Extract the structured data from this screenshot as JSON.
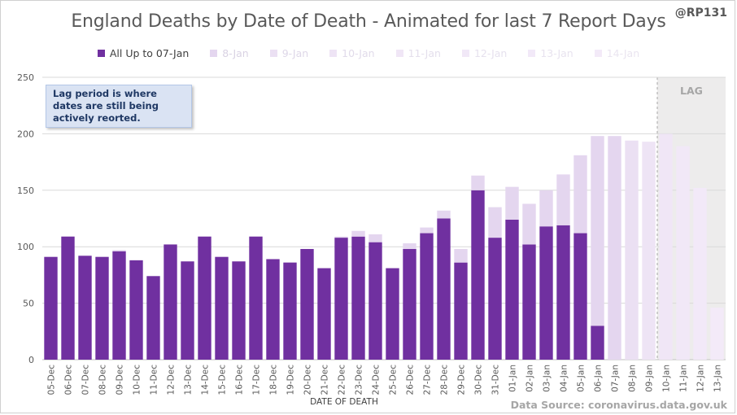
{
  "title": "England Deaths by Date of Death - Animated for last 7 Report Days",
  "handle": "@RP131",
  "note": "Lag period is where dates are still being actively reorted.",
  "source": "Data Source: coronavirus.data.gov.uk",
  "lag_label": "LAG",
  "colors": {
    "base": "#7030a0",
    "grid": "#d9d9d9",
    "text": "#595959",
    "lag_shade": "#e7e6e6"
  },
  "chart_data": {
    "type": "bar",
    "stacked": true,
    "xlabel": "DATE OF DEATH",
    "ylabel": "",
    "ylim": [
      0,
      250
    ],
    "yticks": [
      0,
      50,
      100,
      150,
      200,
      250
    ],
    "grid": true,
    "legend_position": "top",
    "lag_region": [
      "10-Jan",
      "13-Jan"
    ],
    "categories": [
      "05-Dec",
      "06-Dec",
      "07-Dec",
      "08-Dec",
      "09-Dec",
      "10-Dec",
      "11-Dec",
      "12-Dec",
      "13-Dec",
      "14-Dec",
      "15-Dec",
      "16-Dec",
      "17-Dec",
      "18-Dec",
      "19-Dec",
      "20-Dec",
      "21-Dec",
      "22-Dec",
      "23-Dec",
      "24-Dec",
      "25-Dec",
      "26-Dec",
      "27-Dec",
      "28-Dec",
      "29-Dec",
      "30-Dec",
      "31-Dec",
      "01-Jan",
      "02-Jan",
      "03-Jan",
      "04-Jan",
      "05-Jan",
      "06-Jan",
      "07-Jan",
      "08-Jan",
      "09-Jan",
      "10-Jan",
      "11-Jan",
      "12-Jan",
      "13-Jan"
    ],
    "series": [
      {
        "name": "All Up to 07-Jan",
        "color": "#7030a0",
        "text_color": "#404040",
        "values": [
          91,
          109,
          92,
          91,
          96,
          88,
          74,
          102,
          87,
          109,
          91,
          87,
          109,
          89,
          86,
          98,
          81,
          108,
          109,
          104,
          81,
          98,
          112,
          125,
          86,
          150,
          108,
          124,
          102,
          118,
          119,
          112,
          30,
          0,
          0,
          0,
          0,
          0,
          0,
          0
        ]
      },
      {
        "name": "8-Jan",
        "color": "#e4d6ef",
        "text_color": "#d9d2e3",
        "values": [
          0,
          0,
          0,
          0,
          1,
          0,
          0,
          0,
          0,
          0,
          0,
          0,
          0,
          0,
          0,
          0,
          0,
          1,
          5,
          7,
          0,
          5,
          5,
          7,
          12,
          13,
          27,
          29,
          36,
          32,
          45,
          69,
          168,
          198,
          0,
          0,
          0,
          0,
          0,
          0
        ]
      },
      {
        "name": "9-Jan",
        "color": "#ebe0f3",
        "text_color": "#ded7e8",
        "values": [
          0,
          0,
          0,
          0,
          0,
          0,
          0,
          0,
          0,
          0,
          0,
          0,
          0,
          0,
          0,
          0,
          0,
          0,
          0,
          0,
          0,
          0,
          0,
          0,
          0,
          0,
          0,
          0,
          0,
          0,
          0,
          0,
          0,
          0,
          194,
          0,
          0,
          0,
          0,
          0
        ]
      },
      {
        "name": "10-Jan",
        "color": "#eee4f5",
        "text_color": "#e1dbea",
        "values": [
          0,
          0,
          0,
          0,
          0,
          0,
          0,
          0,
          0,
          0,
          0,
          0,
          0,
          0,
          0,
          0,
          0,
          0,
          0,
          0,
          0,
          0,
          0,
          0,
          0,
          0,
          0,
          0,
          0,
          0,
          0,
          0,
          0,
          0,
          0,
          193,
          0,
          0,
          0,
          0
        ]
      },
      {
        "name": "11-Jan",
        "color": "#f0e6f6",
        "text_color": "#e4dfec",
        "values": [
          0,
          0,
          0,
          0,
          0,
          0,
          0,
          0,
          0,
          0,
          0,
          0,
          0,
          0,
          0,
          0,
          0,
          0,
          0,
          0,
          0,
          0,
          0,
          0,
          0,
          0,
          0,
          0,
          0,
          0,
          0,
          0,
          0,
          0,
          0,
          0,
          200,
          0,
          0,
          0
        ]
      },
      {
        "name": "12-Jan",
        "color": "#f1e8f7",
        "text_color": "#e6e1ee",
        "values": [
          0,
          0,
          0,
          0,
          0,
          0,
          0,
          0,
          0,
          0,
          0,
          0,
          0,
          0,
          0,
          0,
          0,
          0,
          0,
          0,
          0,
          0,
          0,
          0,
          0,
          0,
          0,
          0,
          0,
          0,
          0,
          0,
          0,
          0,
          0,
          0,
          0,
          189,
          0,
          0
        ]
      },
      {
        "name": "13-Jan",
        "color": "#f2e9f8",
        "text_color": "#e8e3ef",
        "values": [
          0,
          0,
          0,
          0,
          0,
          0,
          0,
          0,
          0,
          0,
          0,
          0,
          0,
          0,
          0,
          0,
          0,
          0,
          0,
          0,
          0,
          0,
          0,
          0,
          0,
          0,
          0,
          0,
          0,
          0,
          0,
          0,
          0,
          0,
          0,
          0,
          0,
          0,
          152,
          0
        ]
      },
      {
        "name": "14-Jan",
        "color": "#f3eaf8",
        "text_color": "#eae5f0",
        "values": [
          0,
          0,
          0,
          0,
          0,
          0,
          0,
          0,
          0,
          0,
          0,
          0,
          0,
          0,
          0,
          0,
          0,
          0,
          0,
          0,
          0,
          0,
          0,
          0,
          0,
          0,
          0,
          0,
          0,
          0,
          0,
          0,
          0,
          0,
          0,
          0,
          0,
          0,
          0,
          46
        ]
      }
    ]
  }
}
